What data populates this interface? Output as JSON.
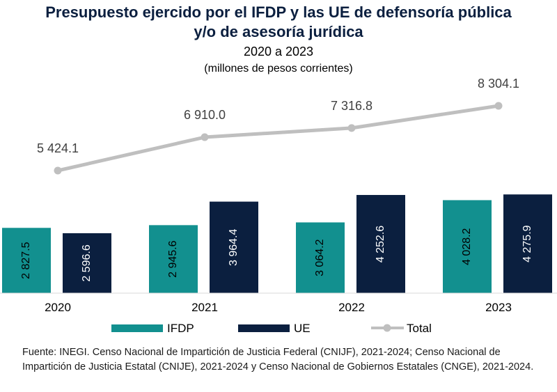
{
  "chart_data": {
    "type": "bar",
    "title_line1": "Presupuesto ejercido por el IFDP y las UE de defensoría pública",
    "title_line2": "y/o de asesoría jurídica",
    "subtitle": "2020 a 2023",
    "units": "(millones de pesos corrientes)",
    "categories": [
      "2020",
      "2021",
      "2022",
      "2023"
    ],
    "value_labels": {
      "IFDP": [
        "2 827.5",
        "2 945.6",
        "3 064.2",
        "4 028.2"
      ],
      "UE": [
        "2 596.6",
        "3 964.4",
        "4 252.6",
        "4 275.9"
      ],
      "Total": [
        "5 424.1",
        "6 910.0",
        "7 316.8",
        "8 304.1"
      ]
    },
    "series": [
      {
        "name": "IFDP",
        "type": "bar",
        "color": "#12908f",
        "values": [
          2827.5,
          2945.6,
          3064.2,
          4028.2
        ]
      },
      {
        "name": "UE",
        "type": "bar",
        "color": "#0b1f3f",
        "values": [
          2596.6,
          3964.4,
          4252.6,
          4275.9
        ]
      },
      {
        "name": "Total",
        "type": "line",
        "color": "#bfbfbf",
        "values": [
          5424.1,
          6910.0,
          7316.8,
          8304.1
        ]
      }
    ],
    "legend_position": "bottom",
    "grid": false
  },
  "source": "Fuente: INEGI. Censo Nacional de Impartición de Justicia Federal (CNIJF), 2021-2024; Censo Nacional de Impartición de Justicia Estatal (CNIJE), 2021-2024 y Censo Nacional de Gobiernos Estatales (CNGE), 2021-2024."
}
